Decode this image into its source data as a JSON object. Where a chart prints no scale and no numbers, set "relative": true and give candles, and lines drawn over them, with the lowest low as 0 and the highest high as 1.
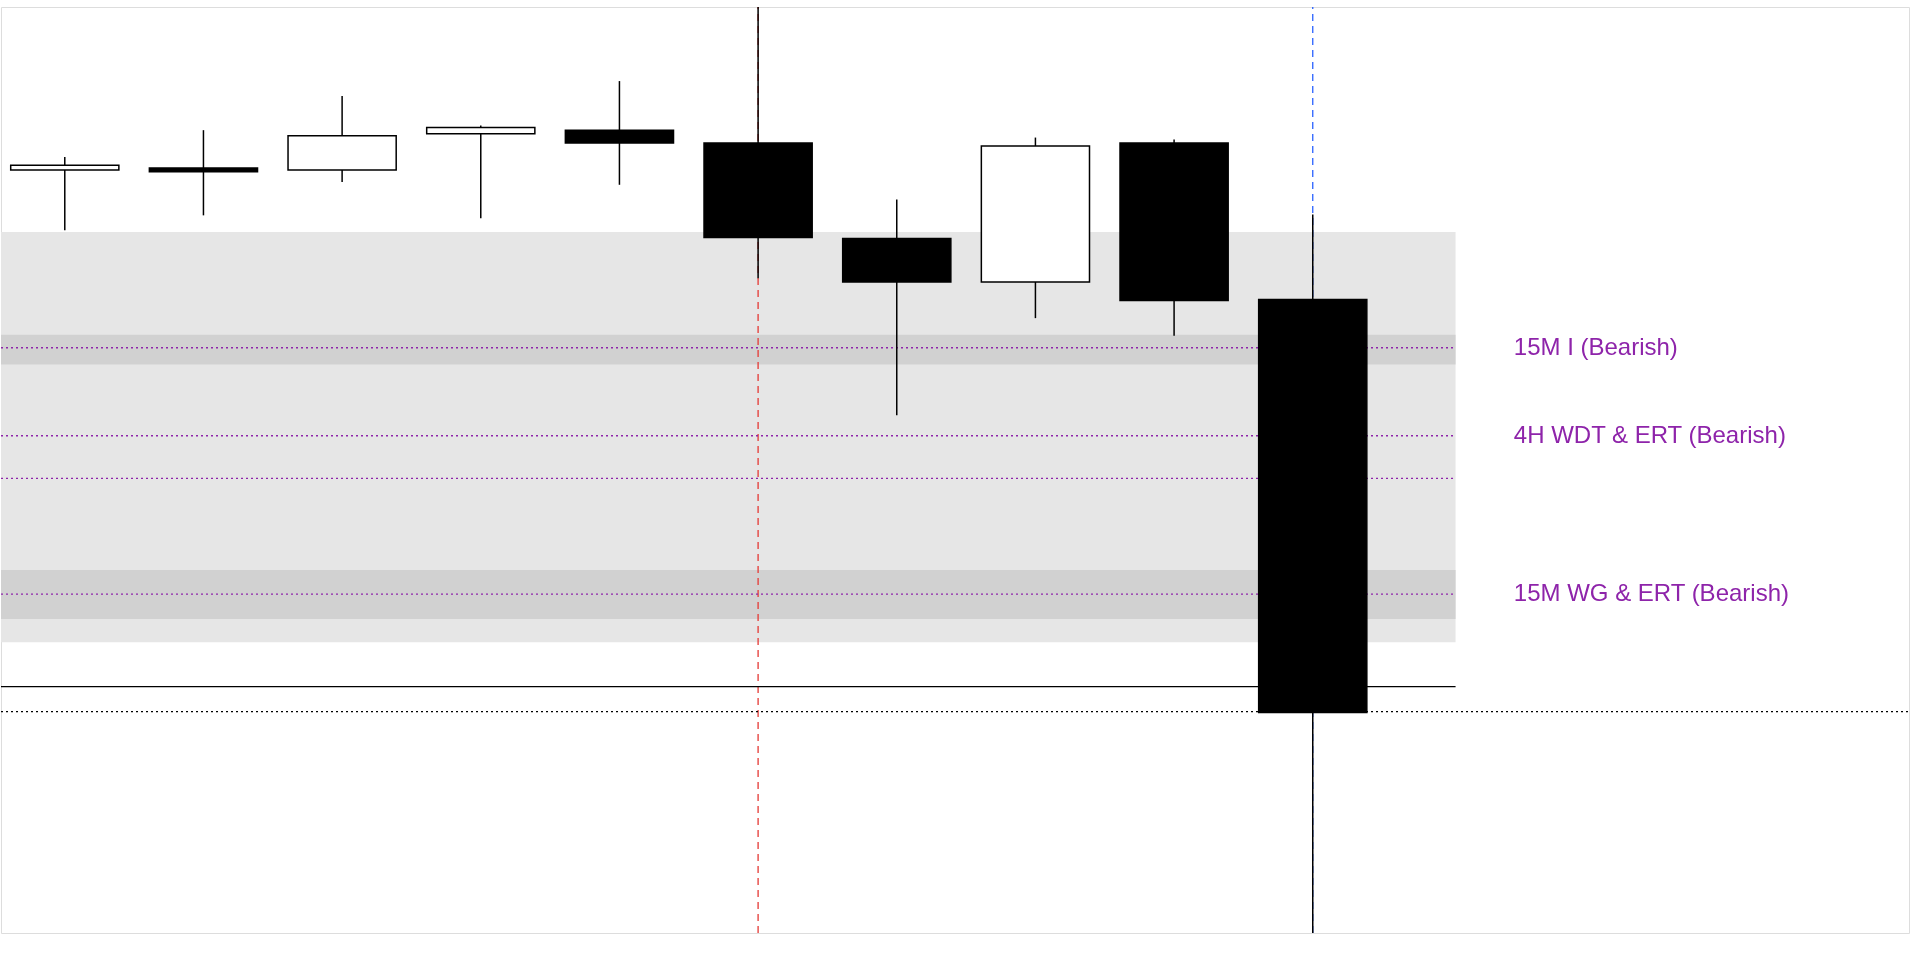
{
  "chart_data": {
    "type": "candlestick",
    "relative": true,
    "categories": [
      null,
      null,
      null,
      null,
      null,
      null,
      null,
      null,
      null,
      null
    ],
    "ohlc": [
      [
        0.824,
        0.838,
        0.759,
        0.829
      ],
      [
        0.826,
        0.867,
        0.775,
        0.822
      ],
      [
        0.824,
        0.904,
        0.811,
        0.861
      ],
      [
        0.863,
        0.872,
        0.772,
        0.87
      ],
      [
        0.867,
        0.92,
        0.808,
        0.853
      ],
      [
        0.853,
        1,
        0.707,
        0.751
      ],
      [
        0.75,
        0.792,
        0.559,
        0.703
      ],
      [
        0.703,
        0.859,
        0.664,
        0.85
      ],
      [
        0.853,
        0.857,
        0.645,
        0.683
      ],
      [
        0.684,
        0.776,
        0,
        0.238
      ]
    ],
    "bands": [
      {
        "axis": "y",
        "from": 0.314,
        "to": 0.757,
        "color": "#e6e6e6"
      },
      {
        "axis": "y",
        "from": 0.614,
        "to": 0.646,
        "color": "#d1d1d1"
      },
      {
        "axis": "y",
        "from": 0.339,
        "to": 0.392,
        "color": "#d1d1d1"
      }
    ],
    "ref_lines": [
      {
        "axis": "y",
        "value": 0.632,
        "label": "15M I (Bearish)",
        "color": "#8e24aa",
        "line_style": "dotted"
      },
      {
        "axis": "y",
        "value": 0.537,
        "label": "4H WDT & ERT (Bearish)",
        "color": "#8e24aa",
        "line_style": "dotted"
      },
      {
        "axis": "y",
        "value": 0.491,
        "color": "#8e24aa",
        "line_style": "dotted"
      },
      {
        "axis": "y",
        "value": 0.366,
        "label": "15M WG & ERT (Bearish)",
        "color": "#8e24aa",
        "line_style": "dotted"
      },
      {
        "axis": "y",
        "value": 0.266,
        "color": "#000000",
        "line_style": "solid"
      },
      {
        "axis": "y",
        "value": 0.239,
        "color": "#000000",
        "line_style": "dotted"
      }
    ]
  }
}
